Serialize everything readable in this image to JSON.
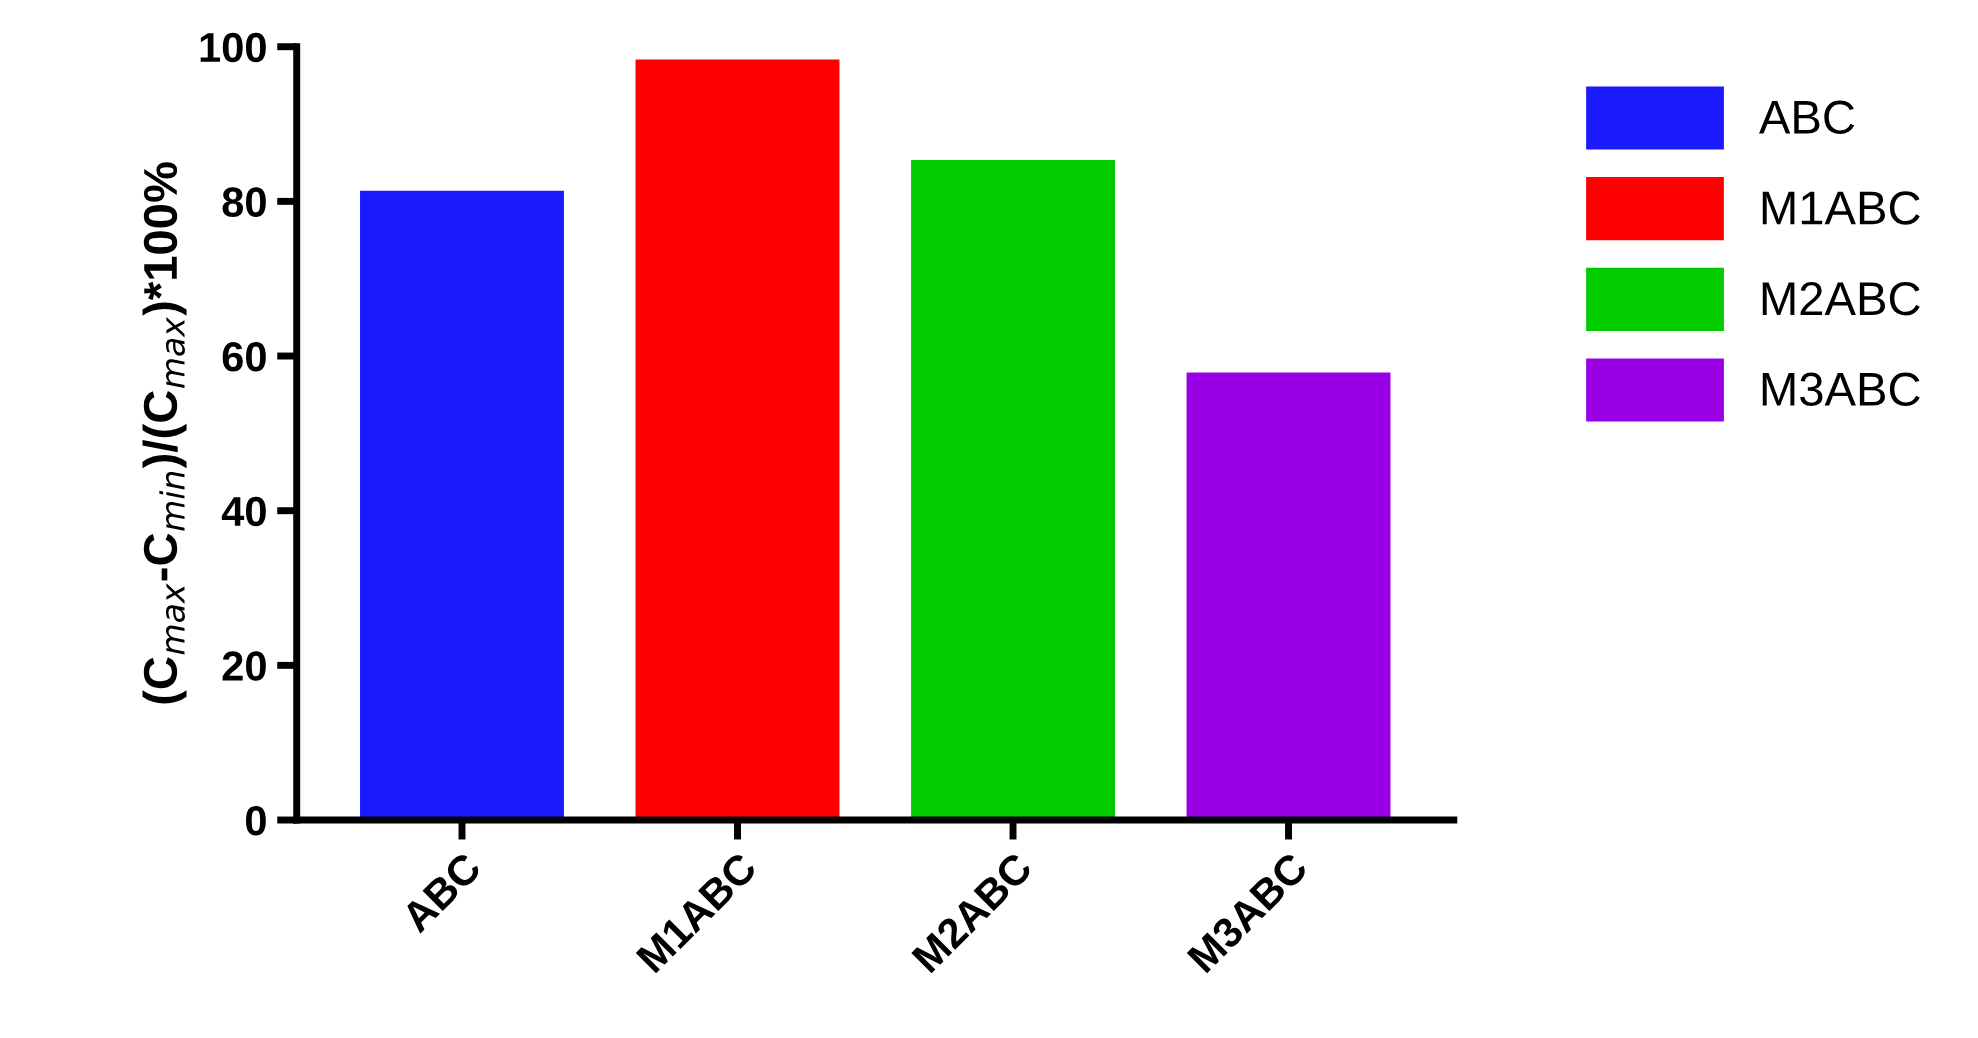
{
  "chart_data": {
    "type": "bar",
    "ylabel": "(C$_{max}$-C$_{min}$)/(C$_{max}$)*100%",
    "categories": [
      "ABC",
      "M1ABC",
      "M2ABC",
      "M3ABC"
    ],
    "series": [
      {
        "name": "ABC",
        "color": "#1a1aff",
        "values": [
          81,
          null,
          null,
          null
        ]
      },
      {
        "name": "M1ABC",
        "color": "#ff0000",
        "values": [
          null,
          98,
          null,
          null
        ]
      },
      {
        "name": "M2ABC",
        "color": "#00cc00",
        "values": [
          null,
          null,
          85,
          null
        ]
      },
      {
        "name": "M3ABC",
        "color": "#9900e6",
        "values": [
          null,
          null,
          null,
          57.5
        ]
      }
    ],
    "ylim": [
      0,
      100
    ],
    "yticks": [
      0,
      20,
      40,
      60,
      80,
      100
    ],
    "grid": false,
    "legend": "right"
  }
}
